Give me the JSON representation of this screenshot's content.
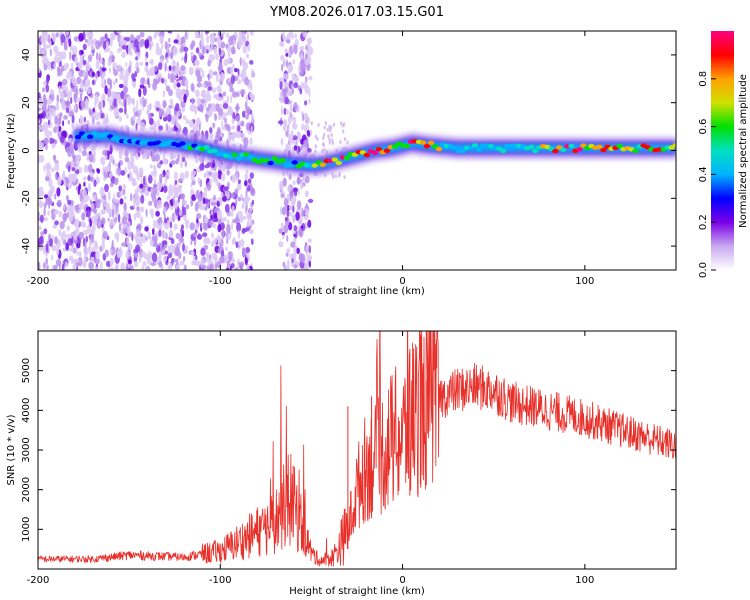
{
  "title": "YM08.2026.017.03.15.G01",
  "chart_data": [
    {
      "type": "heatmap",
      "xlabel": "Height of straight line (km)",
      "ylabel": "Frequency (Hz)",
      "xlim": [
        -200,
        150
      ],
      "ylim": [
        -50,
        50
      ],
      "xticks": [
        -200,
        -100,
        0,
        100
      ],
      "yticks": [
        -40,
        -20,
        0,
        20,
        40
      ],
      "colorbar": {
        "label": "Normalized spectral amplitude",
        "range": [
          0,
          1
        ],
        "ticks": [
          0.0,
          0.2,
          0.4,
          0.6,
          0.8
        ],
        "stops": [
          "#ffffff",
          "#c8a8f0",
          "#7a00e8",
          "#0000ff",
          "#00b4ff",
          "#00e0c0",
          "#00e000",
          "#d0e000",
          "#ffa000",
          "#ff0000",
          "#ff0080"
        ]
      },
      "noise_bands_km": [
        [
          -200,
          -118
        ],
        [
          -116,
          -82
        ],
        [
          -67,
          -50
        ]
      ],
      "ridge": {
        "x": [
          -175,
          -160,
          -150,
          -125,
          -110,
          -95,
          -85,
          -75,
          -65,
          -55,
          -45,
          -35,
          -25,
          -15,
          -5,
          0,
          5,
          15,
          30,
          50,
          80,
          100,
          120,
          150
        ],
        "y": [
          6,
          6,
          4,
          3,
          1,
          -2,
          -3,
          -4,
          -5,
          -6,
          -6,
          -4,
          -2,
          0,
          1,
          2,
          3,
          2,
          1,
          1,
          1,
          1,
          1,
          1
        ]
      }
    },
    {
      "type": "line",
      "xlabel": "Height of straight line (km)",
      "ylabel": "SNR (10 * v/v)",
      "xlim": [
        -200,
        150
      ],
      "ylim": [
        0,
        6000
      ],
      "xticks": [
        -200,
        -100,
        0,
        100
      ],
      "yticks": [
        1000,
        2000,
        3000,
        4000,
        5000
      ],
      "color": "#e8302a",
      "envelope": {
        "x": [
          -200,
          -170,
          -150,
          -120,
          -100,
          -85,
          -70,
          -62,
          -55,
          -50,
          -45,
          -38,
          -30,
          -25,
          -20,
          -15,
          -10,
          -5,
          0,
          5,
          10,
          15,
          20,
          30,
          40,
          50,
          60,
          80,
          100,
          120,
          150
        ],
        "y": [
          250,
          250,
          350,
          300,
          450,
          800,
          1200,
          1800,
          1100,
          400,
          200,
          300,
          1000,
          2000,
          2600,
          2700,
          3000,
          3300,
          3300,
          3800,
          4100,
          4300,
          4300,
          4500,
          4600,
          4500,
          4200,
          4000,
          3800,
          3500,
          3100
        ]
      },
      "spikes": [
        {
          "x": -60,
          "y": 2600
        },
        {
          "x": -30,
          "y": 4100
        },
        {
          "x": -17,
          "y": 4350
        },
        {
          "x": 4,
          "y": 5550
        },
        {
          "x": 10,
          "y": 5900
        },
        {
          "x": 13,
          "y": 4750
        }
      ]
    }
  ]
}
